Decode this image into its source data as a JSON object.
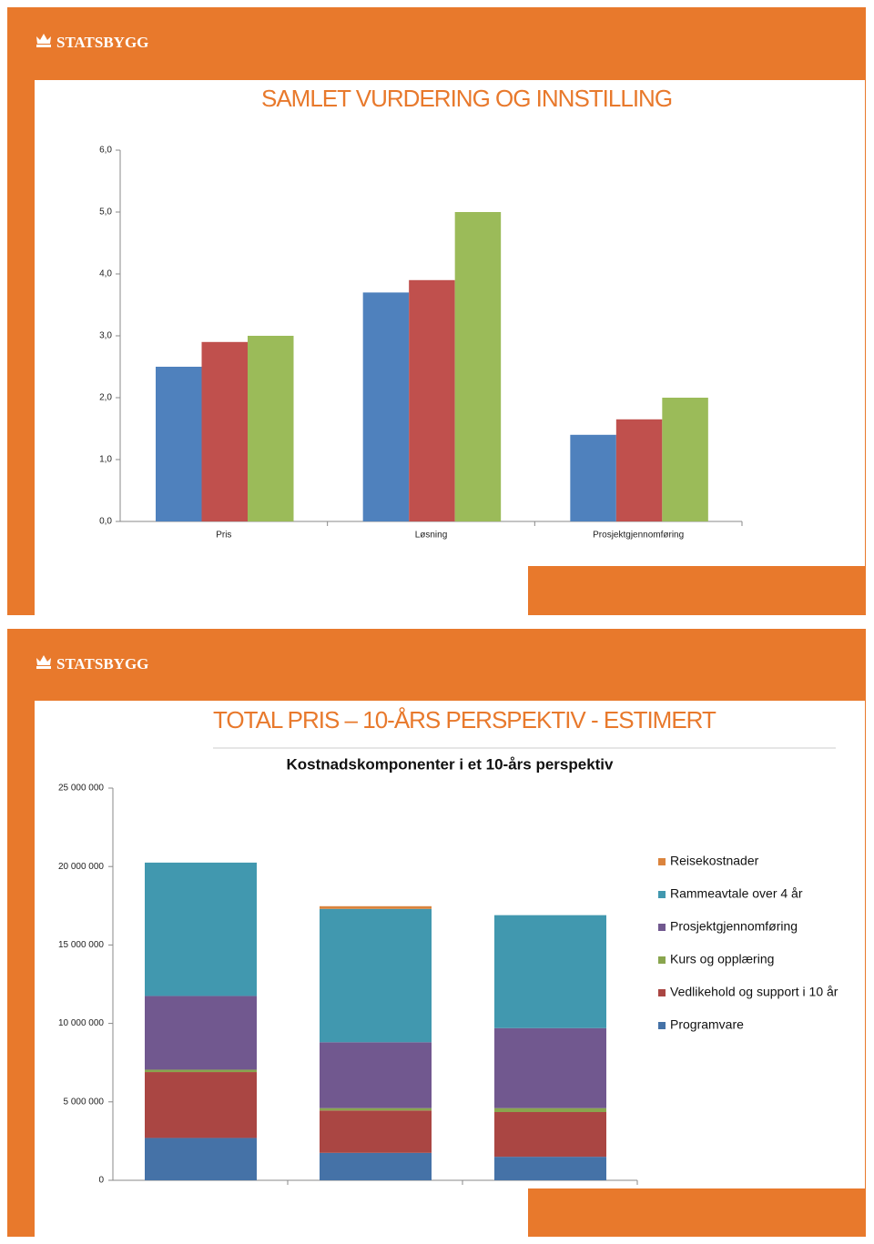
{
  "slides": [
    {
      "logo": "STATSBYGG",
      "title": "SAMLET VURDERING OG INNSTILLING"
    },
    {
      "logo": "STATSBYGG",
      "title": "TOTAL PRIS – 10-ÅRS PERSPEKTIV - ESTIMERT"
    }
  ],
  "chart_data": [
    {
      "type": "bar",
      "categories": [
        "Pris",
        "Løsning",
        "Prosjektgjennomføring"
      ],
      "series": [
        {
          "color": "#4f81bd",
          "values": [
            2.5,
            3.7,
            1.4
          ]
        },
        {
          "color": "#c0504d",
          "values": [
            2.9,
            3.9,
            1.65
          ]
        },
        {
          "color": "#9bbb59",
          "values": [
            3.0,
            5.0,
            2.0
          ]
        }
      ],
      "ylim": [
        0,
        6
      ],
      "yticks": [
        {
          "value": 0,
          "label": "0,0"
        },
        {
          "value": 1,
          "label": "1,0"
        },
        {
          "value": 2,
          "label": "2,0"
        },
        {
          "value": 3,
          "label": "3,0"
        },
        {
          "value": 4,
          "label": "4,0"
        },
        {
          "value": 5,
          "label": "5,0"
        },
        {
          "value": 6,
          "label": "6,0"
        }
      ],
      "grid": false
    },
    {
      "type": "stacked_bar",
      "title": "Kostnadskomponenter i et 10-års perspektiv",
      "categories": [
        null,
        null,
        null
      ],
      "series": [
        {
          "name": "Programvare",
          "color": "#4572a7",
          "values": [
            2700000,
            1750000,
            1500000
          ]
        },
        {
          "name": "Vedlikehold og support i 10 år",
          "color": "#aa4643",
          "values": [
            4200000,
            2700000,
            2850000
          ]
        },
        {
          "name": "Kurs og opplæring",
          "color": "#89a54e",
          "values": [
            150000,
            150000,
            250000
          ]
        },
        {
          "name": "Prosjektgjennomføring",
          "color": "#71588f",
          "values": [
            4700000,
            4200000,
            5100000
          ]
        },
        {
          "name": "Rammeavtale over 4 år",
          "color": "#4198af",
          "values": [
            8500000,
            8500000,
            7200000
          ]
        },
        {
          "name": "Reisekostnader",
          "color": "#db843d",
          "values": [
            0,
            170000,
            0
          ]
        }
      ],
      "ylim": [
        0,
        25000000
      ],
      "yticks": [
        0,
        {
          "value": 5000000,
          "label": "5 000 000"
        },
        {
          "value": 10000000,
          "label": "10 000 000"
        },
        {
          "value": 15000000,
          "label": "15 000 000"
        },
        {
          "value": 20000000,
          "label": "20 000 000"
        },
        {
          "value": 25000000,
          "label": "25 000 000"
        }
      ],
      "legend": "right",
      "grid": false
    }
  ]
}
